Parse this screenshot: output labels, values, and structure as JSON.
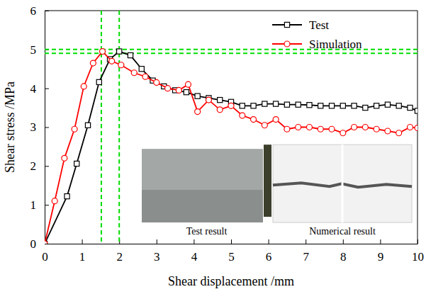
{
  "chart_data": {
    "type": "line",
    "xlabel": "Shear displacement /mm",
    "ylabel": "Shear stress /MPa",
    "xlim": [
      0,
      10
    ],
    "ylim": [
      0,
      6
    ],
    "xticks": [
      0,
      1,
      2,
      3,
      4,
      5,
      6,
      7,
      8,
      9,
      10
    ],
    "yticks": [
      0,
      1,
      2,
      3,
      4,
      5,
      6
    ],
    "grid": false,
    "legend": "upper right",
    "series": [
      {
        "name": "Test",
        "color": "#000000",
        "marker": "square",
        "line_style": "solid",
        "x": [
          0,
          0.6,
          0.86,
          1.16,
          1.46,
          1.75,
          2.0,
          2.3,
          2.6,
          2.9,
          3.2,
          3.5,
          3.8,
          4.1,
          4.4,
          4.7,
          5.0,
          5.3,
          5.6,
          5.9,
          6.2,
          6.5,
          6.8,
          7.1,
          7.4,
          7.7,
          8.0,
          8.3,
          8.6,
          8.9,
          9.2,
          9.5,
          9.8,
          10.0
        ],
        "values": [
          0,
          1.22,
          2.06,
          3.05,
          4.16,
          4.75,
          4.95,
          4.85,
          4.5,
          4.2,
          4.05,
          3.95,
          3.9,
          3.8,
          3.75,
          3.7,
          3.65,
          3.55,
          3.55,
          3.6,
          3.6,
          3.58,
          3.58,
          3.57,
          3.55,
          3.55,
          3.55,
          3.55,
          3.5,
          3.55,
          3.58,
          3.55,
          3.5,
          3.42
        ]
      },
      {
        "name": "Simulation",
        "color": "#ff0000",
        "marker": "circle",
        "line_style": "solid",
        "x": [
          0,
          0.27,
          0.53,
          0.8,
          1.05,
          1.3,
          1.55,
          1.8,
          2.05,
          2.4,
          2.7,
          3.0,
          3.3,
          3.6,
          3.85,
          4.1,
          4.4,
          4.7,
          5.0,
          5.3,
          5.6,
          5.9,
          6.2,
          6.5,
          6.8,
          7.1,
          7.4,
          7.7,
          8.0,
          8.3,
          8.6,
          8.9,
          9.2,
          9.5,
          9.8,
          10.0
        ],
        "values": [
          0,
          1.1,
          2.2,
          2.95,
          4.05,
          4.65,
          4.95,
          4.7,
          4.6,
          4.4,
          4.3,
          4.15,
          4.0,
          3.95,
          4.1,
          3.4,
          3.7,
          3.45,
          3.55,
          3.3,
          3.2,
          3.05,
          3.2,
          2.95,
          3.0,
          3.0,
          2.95,
          2.95,
          2.85,
          3.0,
          3.0,
          2.95,
          2.9,
          2.85,
          3.0,
          2.98
        ]
      }
    ],
    "reference_lines": {
      "color": "#00dd00",
      "line_style": "dashed",
      "x": [
        1.52,
        2.0
      ],
      "y": [
        4.9,
        5.0
      ]
    },
    "insets": [
      {
        "label": "Test result"
      },
      {
        "label": "Numerical result"
      }
    ]
  }
}
